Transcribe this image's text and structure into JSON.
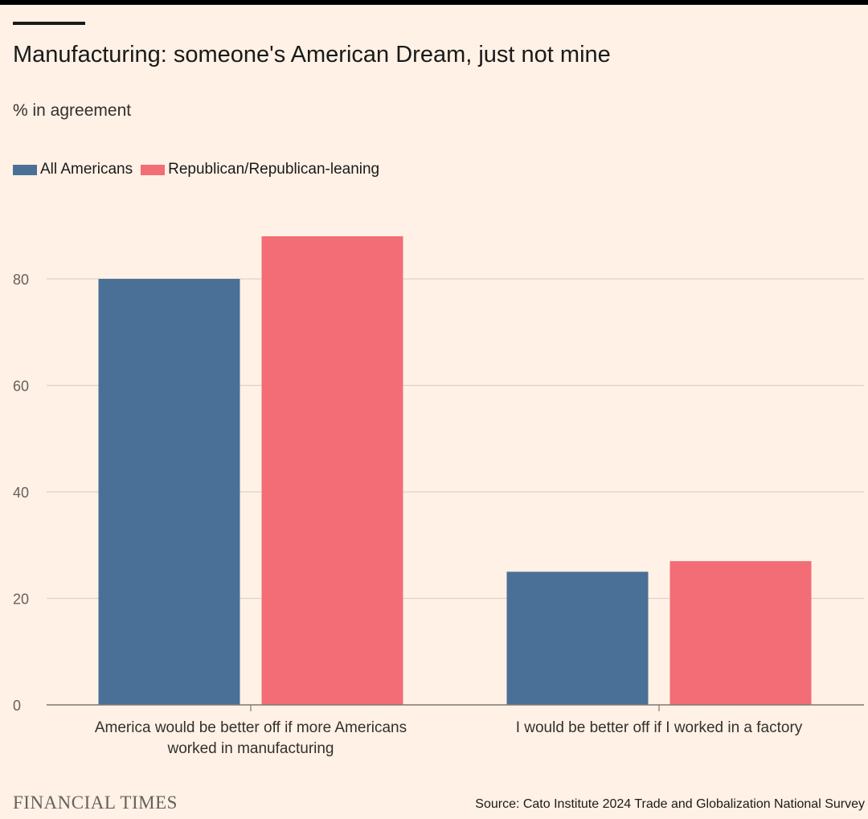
{
  "header": {
    "title": "Manufacturing: someone's American Dream, just not mine",
    "subtitle": "% in agreement"
  },
  "legend": [
    {
      "label": "All Americans",
      "color": "#4a7097"
    },
    {
      "label": "Republican/Republican-leaning",
      "color": "#f26d75"
    }
  ],
  "chart_data": {
    "type": "bar",
    "title": "Manufacturing: someone's American Dream, just not mine",
    "ylabel": "% in agreement",
    "xlabel": "",
    "categories": [
      [
        "America would be better off if more Americans",
        "worked in manufacturing"
      ],
      [
        "I would be better off if I worked in a factory"
      ]
    ],
    "series": [
      {
        "name": "All Americans",
        "color": "#4a7097",
        "values": [
          80,
          25
        ]
      },
      {
        "name": "Republican/Republican-leaning",
        "color": "#f26d75",
        "values": [
          88,
          27
        ]
      }
    ],
    "ylim": [
      0,
      90
    ],
    "yticks": [
      0,
      20,
      40,
      60,
      80
    ],
    "grid": true,
    "legend_position": "top-left"
  },
  "footer": {
    "brand": "FINANCIAL TIMES",
    "source": "Source: Cato Institute 2024 Trade and Globalization National Survey"
  }
}
